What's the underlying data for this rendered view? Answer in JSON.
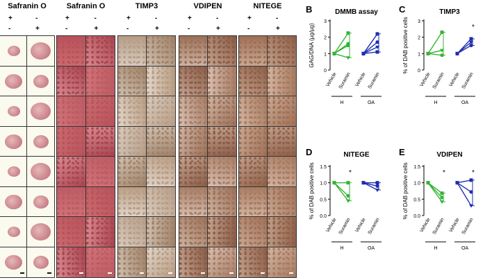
{
  "columns": [
    {
      "title": "Safranin O",
      "x": 0,
      "w": 78
    },
    {
      "title": "Safranin O",
      "x": 82,
      "w": 83
    },
    {
      "title": "TIMP3",
      "x": 170,
      "w": 82
    },
    {
      "title": "VDIPEN",
      "x": 258,
      "w": 82
    },
    {
      "title": "NITEGE",
      "x": 344,
      "w": 82
    }
  ],
  "treatment_signs": {
    "row1": [
      "+",
      "-"
    ],
    "row2": [
      "-",
      "+"
    ]
  },
  "panel_letters": {
    "B": "B",
    "C": "C",
    "D": "D",
    "E": "E"
  },
  "chart_data": [
    {
      "panel": "B",
      "title": "DMMB assay",
      "type": "line",
      "ylabel": "GAG/DNA (µg/µg)",
      "ylim": [
        0,
        3
      ],
      "yticks": [
        "0",
        "1",
        "2",
        "3"
      ],
      "categories": [
        "Vehicle",
        "Suramin",
        "Vehicle",
        "Suramin"
      ],
      "groups": [
        "H",
        "OA"
      ],
      "series_H": [
        [
          1.0,
          2.25
        ],
        [
          1.0,
          1.6
        ],
        [
          1.0,
          0.75
        ],
        [
          1.0,
          1.5
        ]
      ],
      "series_OA": [
        [
          1.0,
          2.2
        ],
        [
          1.0,
          1.7
        ],
        [
          1.0,
          1.4
        ],
        [
          1.0,
          1.1
        ]
      ],
      "mean_H": [
        1.0,
        1.5
      ],
      "mean_OA": [
        1.0,
        1.6
      ],
      "significance": []
    },
    {
      "panel": "C",
      "title": "TIMP3",
      "type": "line",
      "ylabel": "% of DAB positive cells",
      "ylim": [
        0,
        3
      ],
      "yticks": [
        "0",
        "1",
        "2",
        "3"
      ],
      "categories": [
        "Vehicle",
        "Suramin",
        "Vehicle",
        "Suramin"
      ],
      "groups": [
        "H",
        "OA"
      ],
      "series_H": [
        [
          1.0,
          2.3
        ],
        [
          1.0,
          0.9
        ],
        [
          1.0,
          1.2
        ]
      ],
      "series_OA": [
        [
          1.0,
          1.9
        ],
        [
          1.0,
          1.5
        ],
        [
          1.0,
          1.7
        ]
      ],
      "mean_H": [
        1.0,
        1.35
      ],
      "mean_OA": [
        1.0,
        1.75
      ],
      "significance": [
        "*"
      ]
    },
    {
      "panel": "D",
      "title": "NITEGE",
      "type": "line",
      "ylabel": "% of DAB positive cells",
      "ylim": [
        0,
        1.5
      ],
      "yticks": [
        "0.0",
        "0.5",
        "1.0",
        "1.5"
      ],
      "categories": [
        "Vehicle",
        "Suramin",
        "Vehicle",
        "Suramin"
      ],
      "groups": [
        "H",
        "OA"
      ],
      "series_H": [
        [
          1.0,
          1.0
        ],
        [
          1.0,
          0.6
        ],
        [
          1.0,
          0.45
        ]
      ],
      "series_OA": [
        [
          1.0,
          1.0
        ],
        [
          1.0,
          0.9
        ],
        [
          1.0,
          0.78
        ]
      ],
      "mean_H": [
        1.0,
        0.65
      ],
      "mean_OA": [
        1.0,
        0.85
      ],
      "significance": [
        "*"
      ]
    },
    {
      "panel": "E",
      "title": "VDIPEN",
      "type": "line",
      "ylabel": "% of DAB positive cells",
      "ylim": [
        0,
        1.5
      ],
      "yticks": [
        "0.0",
        "0.5",
        "1.0",
        "1.5"
      ],
      "categories": [
        "Vehicle",
        "Suramin",
        "Vehicle",
        "Suramin"
      ],
      "groups": [
        "H",
        "OA"
      ],
      "series_H": [
        [
          1.0,
          0.68
        ],
        [
          1.0,
          0.55
        ],
        [
          1.0,
          0.42
        ]
      ],
      "series_OA": [
        [
          1.0,
          1.08
        ],
        [
          1.0,
          0.72
        ],
        [
          1.0,
          0.3
        ]
      ],
      "mean_H": [
        1.0,
        0.55
      ],
      "mean_OA": [
        1.0,
        0.7
      ],
      "significance": [
        "*",
        "*"
      ]
    }
  ],
  "colors": {
    "H": "#34b334",
    "OA": "#1f2db0"
  }
}
